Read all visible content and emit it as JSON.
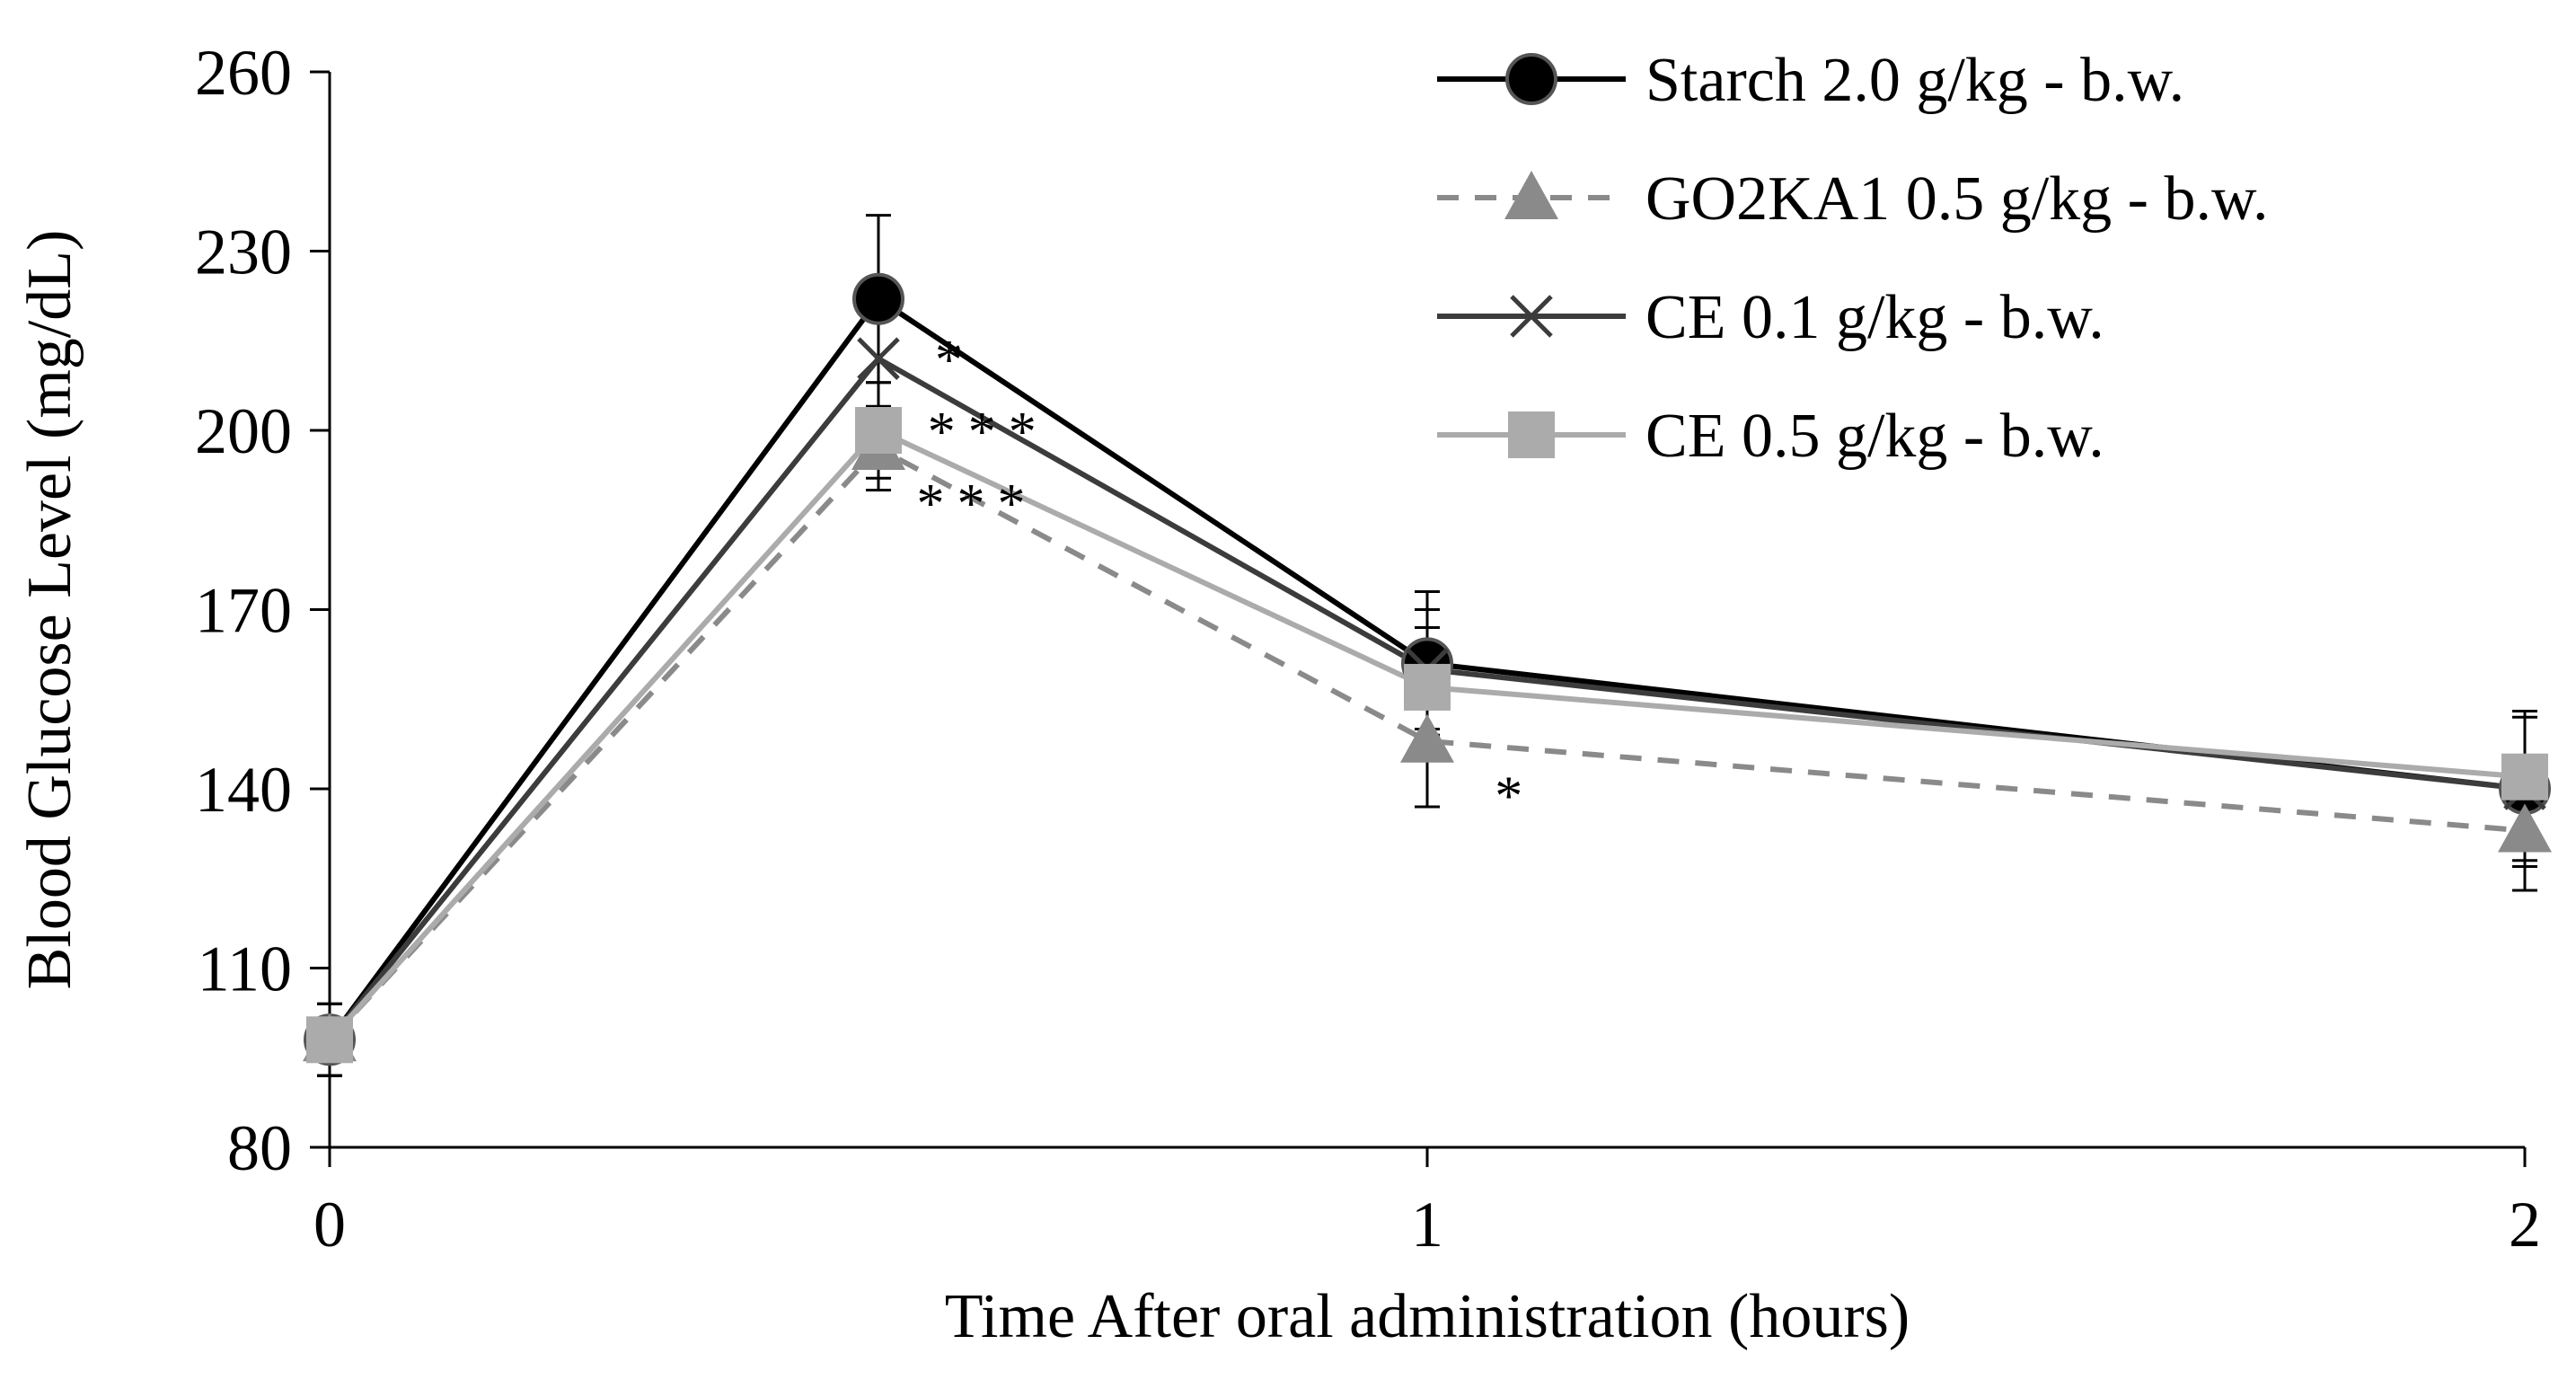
{
  "chart_data": {
    "type": "line",
    "title": "",
    "xlabel": "Time After oral administration (hours)",
    "ylabel": "Blood Glucose Level (mg/dL)",
    "xlim": [
      0,
      2
    ],
    "ylim": [
      80,
      260
    ],
    "xticks": [
      0,
      1,
      2
    ],
    "xtick_labels": [
      "0",
      "1",
      "2"
    ],
    "yticks": [
      80,
      110,
      140,
      170,
      200,
      230,
      260
    ],
    "ytick_labels": [
      "80",
      "110",
      "140",
      "170",
      "200",
      "230",
      "260"
    ],
    "grid": false,
    "legend_position": "top-right",
    "series": [
      {
        "name": "Starch 2.0 g/kg - b.w.",
        "x": [
          0,
          0.5,
          1,
          2
        ],
        "values": [
          98,
          222,
          161,
          140
        ],
        "errors": [
          6,
          14,
          12,
          13
        ],
        "marker": "circle",
        "line_style": "solid",
        "color": "#000000",
        "marker_color": "#000000"
      },
      {
        "name": "GO2KA1 0.5 g/kg - b.w.",
        "x": [
          0,
          0.5,
          1,
          2
        ],
        "values": [
          98,
          197,
          148,
          133
        ],
        "errors": [
          6,
          7,
          11,
          10
        ],
        "marker": "triangle",
        "line_style": "dashed",
        "color": "#8a8a8a",
        "marker_color": "#8a8a8a"
      },
      {
        "name": "CE 0.1 g/kg - b.w.",
        "x": [
          0,
          0.5,
          1,
          2
        ],
        "values": [
          98,
          212,
          160,
          140
        ],
        "errors": [
          6,
          8,
          10,
          12
        ],
        "marker": "x",
        "line_style": "solid",
        "color": "#3c3c3c",
        "marker_color": "#3c3c3c"
      },
      {
        "name": "CE 0.5 g/kg - b.w.",
        "x": [
          0,
          0.5,
          1,
          2
        ],
        "values": [
          98,
          200,
          157,
          142
        ],
        "errors": [
          6,
          8,
          10,
          11
        ],
        "marker": "square",
        "line_style": "solid",
        "color": "#ababab",
        "marker_color": "#ababab"
      }
    ],
    "annotations": [
      {
        "text": "*",
        "x": 0.57,
        "y": 212
      },
      {
        "text": "***",
        "x": 0.6,
        "y": 200
      },
      {
        "text": "***",
        "x": 0.59,
        "y": 188
      },
      {
        "text": "*",
        "x": 1.08,
        "y": 139
      }
    ]
  }
}
